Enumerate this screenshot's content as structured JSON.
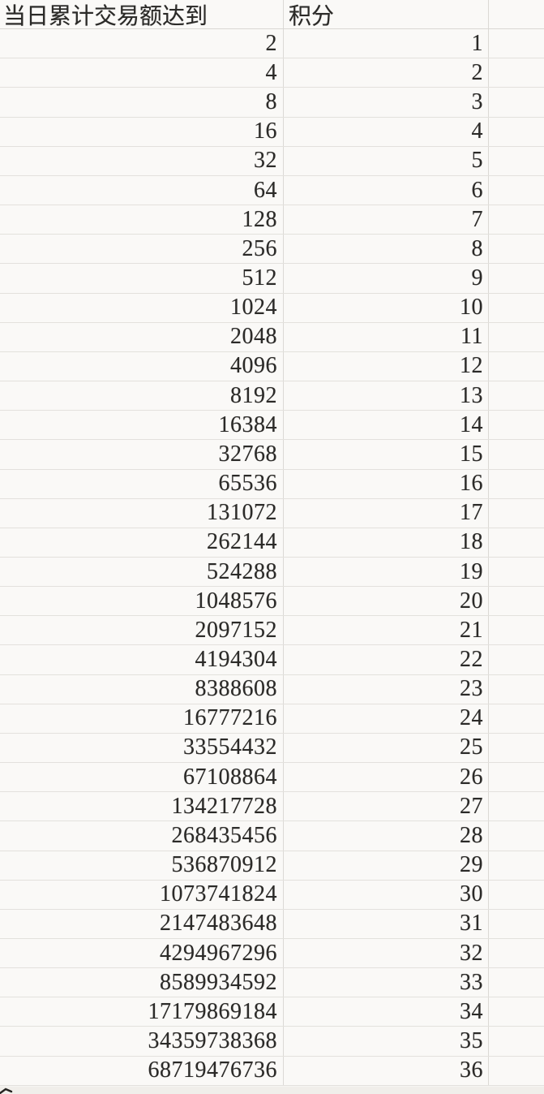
{
  "table": {
    "header": {
      "amount": "当日累计交易额达到",
      "points": "积分"
    },
    "rows": [
      {
        "amount": "2",
        "points": "1"
      },
      {
        "amount": "4",
        "points": "2"
      },
      {
        "amount": "8",
        "points": "3"
      },
      {
        "amount": "16",
        "points": "4"
      },
      {
        "amount": "32",
        "points": "5"
      },
      {
        "amount": "64",
        "points": "6"
      },
      {
        "amount": "128",
        "points": "7"
      },
      {
        "amount": "256",
        "points": "8"
      },
      {
        "amount": "512",
        "points": "9"
      },
      {
        "amount": "1024",
        "points": "10"
      },
      {
        "amount": "2048",
        "points": "11"
      },
      {
        "amount": "4096",
        "points": "12"
      },
      {
        "amount": "8192",
        "points": "13"
      },
      {
        "amount": "16384",
        "points": "14"
      },
      {
        "amount": "32768",
        "points": "15"
      },
      {
        "amount": "65536",
        "points": "16"
      },
      {
        "amount": "131072",
        "points": "17"
      },
      {
        "amount": "262144",
        "points": "18"
      },
      {
        "amount": "524288",
        "points": "19"
      },
      {
        "amount": "1048576",
        "points": "20"
      },
      {
        "amount": "2097152",
        "points": "21"
      },
      {
        "amount": "4194304",
        "points": "22"
      },
      {
        "amount": "8388608",
        "points": "23"
      },
      {
        "amount": "16777216",
        "points": "24"
      },
      {
        "amount": "33554432",
        "points": "25"
      },
      {
        "amount": "67108864",
        "points": "26"
      },
      {
        "amount": "134217728",
        "points": "27"
      },
      {
        "amount": "268435456",
        "points": "28"
      },
      {
        "amount": "536870912",
        "points": "29"
      },
      {
        "amount": "1073741824",
        "points": "30"
      },
      {
        "amount": "2147483648",
        "points": "31"
      },
      {
        "amount": "4294967296",
        "points": "32"
      },
      {
        "amount": "8589934592",
        "points": "33"
      },
      {
        "amount": "17179869184",
        "points": "34"
      },
      {
        "amount": "34359738368",
        "points": "35"
      },
      {
        "amount": "68719476736",
        "points": "36"
      }
    ]
  },
  "colors": {
    "background": "#f6f5f2",
    "cell_background": "#faf9f7",
    "gridline_horizontal": "#e3e1dd",
    "gridline_vertical": "#dbd9d5",
    "text": "#2b2a28"
  }
}
